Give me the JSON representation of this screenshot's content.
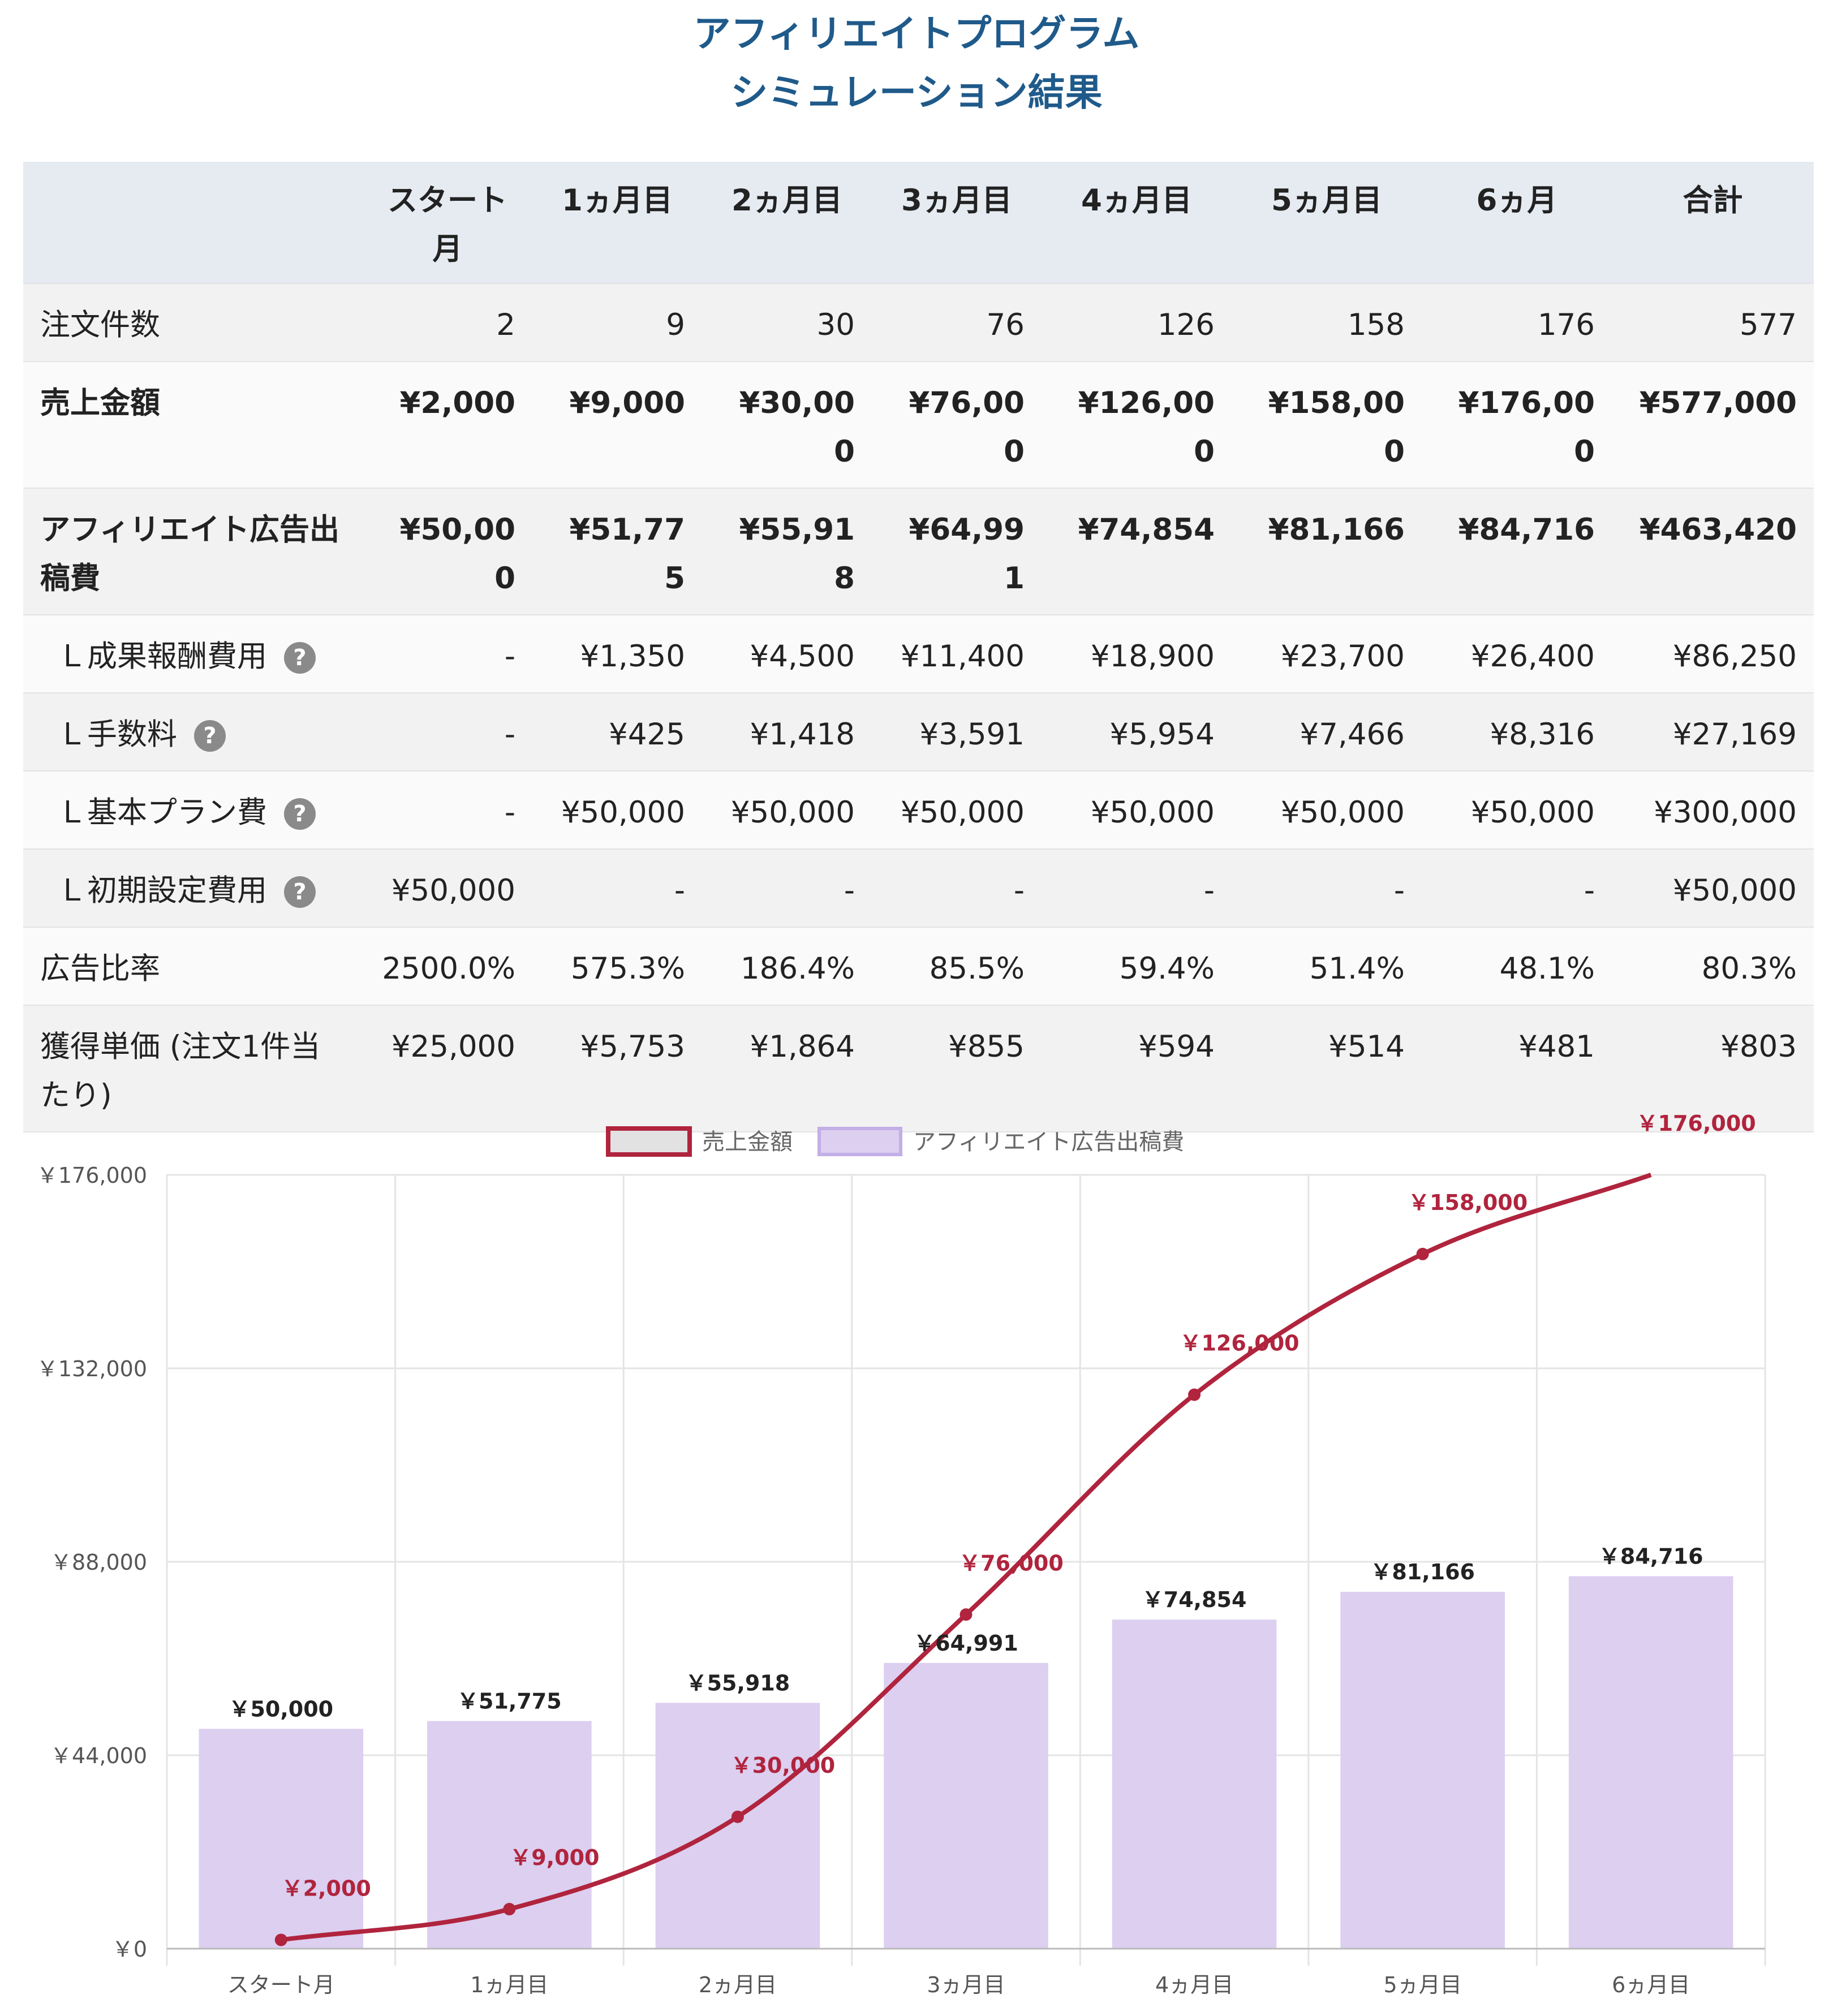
{
  "title_line1": "アフィリエイトプログラム",
  "title_line2": "シミュレーション結果",
  "columns": [
    "",
    "スタート月",
    "1ヵ月目",
    "2ヵ月目",
    "3ヵ月目",
    "4ヵ月目",
    "5ヵ月目",
    "6ヵ月",
    "合計"
  ],
  "rows": [
    {
      "label": "注文件数",
      "bold": false,
      "sub": false,
      "help": false,
      "values": [
        "2",
        "9",
        "30",
        "76",
        "126",
        "158",
        "176",
        "577"
      ]
    },
    {
      "label": "売上金額",
      "bold": true,
      "sub": false,
      "help": false,
      "values": [
        "¥2,000",
        "¥9,000",
        "¥30,000",
        "¥76,000",
        "¥126,000",
        "¥158,000",
        "¥176,000",
        "¥577,000"
      ]
    },
    {
      "label": "アフィリエイト広告出稿費",
      "bold": true,
      "sub": false,
      "help": false,
      "values": [
        "¥50,000",
        "¥51,775",
        "¥55,918",
        "¥64,991",
        "¥74,854",
        "¥81,166",
        "¥84,716",
        "¥463,420"
      ]
    },
    {
      "label": "Ｌ成果報酬費用",
      "bold": false,
      "sub": true,
      "help": true,
      "values": [
        "-",
        "¥1,350",
        "¥4,500",
        "¥11,400",
        "¥18,900",
        "¥23,700",
        "¥26,400",
        "¥86,250"
      ]
    },
    {
      "label": "Ｌ手数料",
      "bold": false,
      "sub": true,
      "help": true,
      "values": [
        "-",
        "¥425",
        "¥1,418",
        "¥3,591",
        "¥5,954",
        "¥7,466",
        "¥8,316",
        "¥27,169"
      ]
    },
    {
      "label": "Ｌ基本プラン費",
      "bold": false,
      "sub": true,
      "help": true,
      "values": [
        "-",
        "¥50,000",
        "¥50,000",
        "¥50,000",
        "¥50,000",
        "¥50,000",
        "¥50,000",
        "¥300,000"
      ]
    },
    {
      "label": "Ｌ初期設定費用",
      "bold": false,
      "sub": true,
      "help": true,
      "values": [
        "¥50,000",
        "-",
        "-",
        "-",
        "-",
        "-",
        "-",
        "¥50,000"
      ]
    },
    {
      "label": "広告比率",
      "bold": false,
      "sub": false,
      "help": false,
      "values": [
        "2500.0%",
        "575.3%",
        "186.4%",
        "85.5%",
        "59.4%",
        "51.4%",
        "48.1%",
        "80.3%"
      ]
    },
    {
      "label": "獲得単価 (注文1件当たり)",
      "bold": false,
      "sub": false,
      "help": false,
      "values": [
        "¥25,000",
        "¥5,753",
        "¥1,864",
        "¥855",
        "¥594",
        "¥514",
        "¥481",
        "¥803"
      ]
    }
  ],
  "help_glyph": "?",
  "chart_data": {
    "type": "bar",
    "categories": [
      "スタート月",
      "1ヵ月目",
      "2ヵ月目",
      "3ヵ月目",
      "4ヵ月目",
      "5ヵ月目",
      "6ヵ月目"
    ],
    "series": [
      {
        "name": "売上金額",
        "type": "line",
        "color": "#b0243d",
        "values": [
          2000,
          9000,
          30000,
          76000,
          126000,
          158000,
          176000
        ],
        "labels": [
          "￥2,000",
          "￥9,000",
          "￥30,000",
          "￥76,000",
          "￥126,000",
          "￥158,000",
          "￥176,000"
        ]
      },
      {
        "name": "アフィリエイト広告出稿費",
        "type": "bar",
        "color": "#dccff0",
        "values": [
          50000,
          51775,
          55918,
          64991,
          74854,
          81166,
          84716
        ],
        "labels": [
          "￥50,000",
          "￥51,775",
          "￥55,918",
          "￥64,991",
          "￥74,854",
          "￥81,166",
          "￥84,716"
        ]
      }
    ],
    "ylim": [
      0,
      176000
    ],
    "yticks": [
      0,
      44000,
      88000,
      132000,
      176000
    ],
    "ytick_labels": [
      "￥0",
      "￥44,000",
      "￥88,000",
      "￥132,000",
      "￥176,000"
    ],
    "grid": true,
    "legend": "top"
  }
}
